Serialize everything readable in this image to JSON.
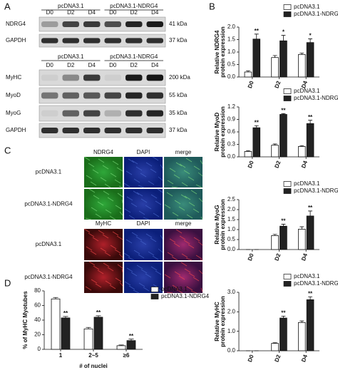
{
  "panel_letters": [
    "A",
    "B",
    "C",
    "D"
  ],
  "panel_a": {
    "blot1": {
      "groups": [
        "pcDNA3.1",
        "pcDNA3.1-NDRG4"
      ],
      "lanes": [
        "D0",
        "D2",
        "D4",
        "D0",
        "D2",
        "D4"
      ],
      "rows": [
        {
          "protein": "NDRG4",
          "size": "41 kDa"
        },
        {
          "protein": "GAPDH",
          "size": "37 kDa"
        }
      ]
    },
    "blot2": {
      "groups": [
        "pcDNA3.1",
        "pcDNA3.1-NDRG4"
      ],
      "lanes": [
        "D0",
        "D2",
        "D4",
        "D0",
        "D2",
        "D4"
      ],
      "rows": [
        {
          "protein": "MyHC",
          "size": "200 kDa"
        },
        {
          "protein": "MyoD",
          "size": "55 kDa"
        },
        {
          "protein": "MyoG",
          "size": "35 kDa"
        },
        {
          "protein": "GAPDH",
          "size": "37 kDa"
        }
      ]
    }
  },
  "panel_c": {
    "blocks": [
      {
        "columns": [
          "NDRG4",
          "DAPI",
          "merge"
        ],
        "rows": [
          "pcDNA3.1",
          "pcDNA3.1-NDRG4"
        ]
      },
      {
        "columns": [
          "MyHC",
          "DAPI",
          "merge"
        ],
        "rows": [
          "pcDNA3.1",
          "pcDNA3.1-NDRG4"
        ]
      }
    ]
  },
  "chart_data": [
    {
      "type": "bar",
      "ylabel": [
        "Relative NDRG4",
        "protein expression"
      ],
      "categories": [
        "D0",
        "D2",
        "D4"
      ],
      "ylim": [
        0,
        2
      ],
      "yticks": [
        {
          "value": 0,
          "label": "0.0"
        },
        0.5,
        {
          "value": 1,
          "label": "1.0"
        },
        1.5,
        {
          "value": 2,
          "label": "2.0"
        }
      ],
      "series": [
        {
          "name": "pcDNA3.1",
          "color": "#ffffff",
          "values": [
            0.2,
            0.78,
            0.9
          ],
          "errors": [
            0.05,
            0.08,
            0.06
          ],
          "annotations": [
            null,
            null,
            null
          ]
        },
        {
          "name": "pcDNA3.1-NDRG4",
          "color": "#222222",
          "values": [
            1.52,
            1.45,
            1.38
          ],
          "errors": [
            0.2,
            0.22,
            0.15
          ],
          "annotations": [
            "**",
            "*",
            "*"
          ]
        }
      ]
    },
    {
      "type": "bar",
      "ylabel": [
        "Relative MyoD",
        "protein expression"
      ],
      "categories": [
        "D0",
        "D2",
        "D4"
      ],
      "ylim": [
        0,
        1.2
      ],
      "yticks": [
        {
          "value": 0,
          "label": "0.0"
        },
        0.3,
        0.6,
        0.9,
        1.2
      ],
      "series": [
        {
          "name": "pcDNA3.1",
          "color": "#ffffff",
          "values": [
            0.13,
            0.28,
            0.25
          ],
          "errors": [
            0.02,
            0.03,
            0.02
          ],
          "annotations": [
            null,
            null,
            null
          ]
        },
        {
          "name": "pcDNA3.1-NDRG4",
          "color": "#222222",
          "values": [
            0.7,
            1.02,
            0.8
          ],
          "errors": [
            0.05,
            0.02,
            0.08
          ],
          "annotations": [
            "**",
            "**",
            "**"
          ]
        }
      ]
    },
    {
      "type": "bar",
      "ylabel": [
        "Relative MyoG",
        "protein expression"
      ],
      "categories": [
        "D0",
        "D2",
        "D4"
      ],
      "ylim": [
        0,
        2.5
      ],
      "yticks": [
        {
          "value": 0,
          "label": "0.0"
        },
        0.5,
        {
          "value": 1,
          "label": "1.0"
        },
        1.5,
        {
          "value": 2,
          "label": "2.0"
        },
        2.5
      ],
      "series": [
        {
          "name": "pcDNA3.1",
          "color": "#ffffff",
          "values": [
            0,
            0.7,
            1.02
          ],
          "errors": [
            0,
            0.06,
            0.12
          ],
          "annotations": [
            null,
            null,
            null
          ]
        },
        {
          "name": "pcDNA3.1-NDRG4",
          "color": "#222222",
          "values": [
            0,
            1.17,
            1.68
          ],
          "errors": [
            0,
            0.1,
            0.25
          ],
          "annotations": [
            null,
            "**",
            "**"
          ]
        }
      ]
    },
    {
      "type": "bar",
      "ylabel": [
        "Relative MyHC",
        "protein expression"
      ],
      "categories": [
        "D0",
        "D2",
        "D4"
      ],
      "ylim": [
        0,
        3
      ],
      "yticks": [
        {
          "value": 0,
          "label": "0.0"
        },
        {
          "value": 1,
          "label": "1.0"
        },
        {
          "value": 2,
          "label": "2.0"
        },
        {
          "value": 3,
          "label": "3.0"
        }
      ],
      "series": [
        {
          "name": "pcDNA3.1",
          "color": "#ffffff",
          "values": [
            0,
            0.38,
            1.45
          ],
          "errors": [
            0,
            0.03,
            0.08
          ],
          "annotations": [
            null,
            null,
            null
          ]
        },
        {
          "name": "pcDNA3.1-NDRG4",
          "color": "#222222",
          "values": [
            0,
            1.68,
            2.62
          ],
          "errors": [
            0,
            0.1,
            0.15
          ],
          "annotations": [
            null,
            "**",
            "**"
          ]
        }
      ]
    },
    {
      "type": "bar",
      "ylabel": [
        "% of MyHC Myotubes"
      ],
      "xlabel": "# of nuclei",
      "categories": [
        "1",
        "2~5",
        "≥6"
      ],
      "ylim": [
        0,
        80
      ],
      "yticks": [
        0,
        20,
        40,
        60,
        80
      ],
      "series": [
        {
          "name": "pcDNA3.1",
          "color": "#ffffff",
          "values": [
            69,
            28,
            5
          ],
          "errors": [
            2,
            2,
            1
          ],
          "annotations": [
            null,
            null,
            null
          ]
        },
        {
          "name": "pcDNA3.1-NDRG4",
          "color": "#222222",
          "values": [
            43,
            44,
            12
          ],
          "errors": [
            2,
            2,
            2
          ],
          "annotations": [
            "**",
            "**",
            "**"
          ]
        }
      ]
    }
  ]
}
